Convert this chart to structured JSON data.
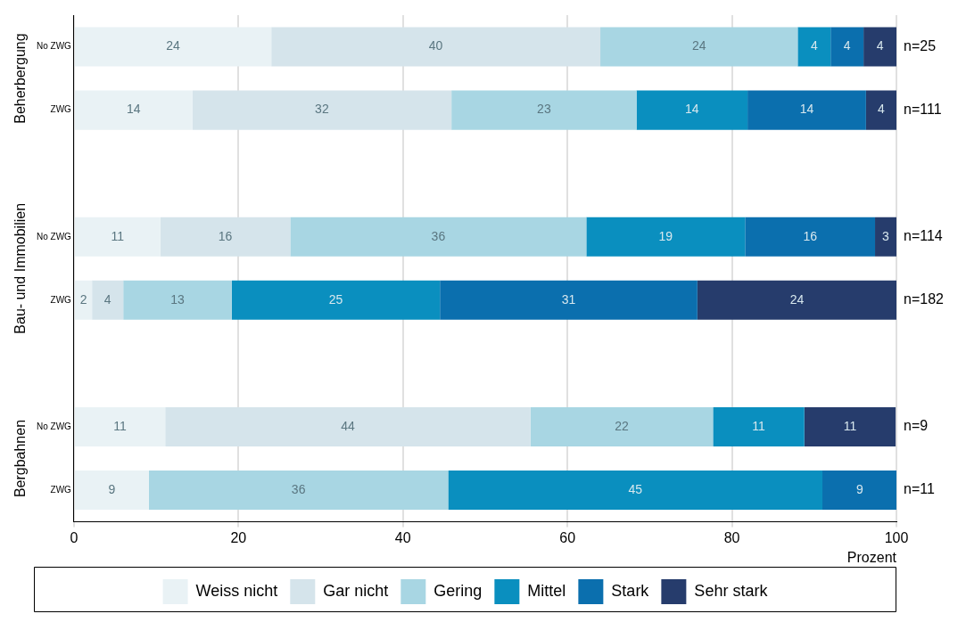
{
  "chart_data": {
    "type": "bar",
    "orientation": "horizontal",
    "stacked": true,
    "xlabel": "Prozent",
    "categories": [
      "No ZWG",
      "ZWG",
      null,
      "No ZWG",
      "ZWG",
      null,
      "No ZWG",
      "ZWG"
    ],
    "series": [
      {
        "name": "Weiss nicht",
        "color": "#e9f2f5",
        "values": [
          24,
          14.4,
          null,
          10.5,
          2.2,
          null,
          11.1,
          9.1
        ],
        "value_labels": [
          "24",
          "14",
          null,
          "11",
          "2",
          null,
          "11",
          "9"
        ]
      },
      {
        "name": "Gar nicht",
        "color": "#d5e4eb",
        "values": [
          40,
          31.5,
          null,
          15.8,
          3.8,
          null,
          44.4,
          null
        ],
        "value_labels": [
          "40",
          "32",
          null,
          "16",
          "4",
          null,
          "44",
          null
        ]
      },
      {
        "name": "Gering",
        "color": "#a8d6e3",
        "values": [
          24,
          22.5,
          null,
          36,
          13.2,
          null,
          22.2,
          36.4
        ],
        "value_labels": [
          "24",
          "23",
          null,
          "36",
          "13",
          null,
          "22",
          "36"
        ]
      },
      {
        "name": "Mittel",
        "color": "#0a8fbf",
        "values": [
          4,
          13.5,
          null,
          19.3,
          25.3,
          null,
          11.1,
          45.5
        ],
        "value_labels": [
          "4",
          "14",
          null,
          "19",
          "25",
          null,
          "11",
          "45"
        ]
      },
      {
        "name": "Stark",
        "color": "#0b6fae",
        "values": [
          4,
          14.4,
          null,
          15.8,
          31.3,
          null,
          null,
          9.1
        ],
        "value_labels": [
          "4",
          "14",
          null,
          "16",
          "31",
          null,
          null,
          "9"
        ]
      },
      {
        "name": "Sehr stark",
        "color": "#263c6c",
        "values": [
          4,
          3.7,
          null,
          2.6,
          24.2,
          null,
          11.1,
          null
        ],
        "value_labels": [
          "4",
          "4",
          null,
          "3",
          "24",
          null,
          "11",
          null
        ]
      }
    ],
    "annotations": [
      "Beherbergung",
      "Bau- und Immobilien",
      "Bergbahnen",
      "n=25",
      "n=111",
      "n=114",
      "n=182",
      "n=9",
      "n=11"
    ],
    "xlim": [
      0,
      100
    ],
    "xticks": [
      0,
      20,
      40,
      60,
      80,
      100
    ],
    "grid": "x",
    "legend": "bottom"
  }
}
